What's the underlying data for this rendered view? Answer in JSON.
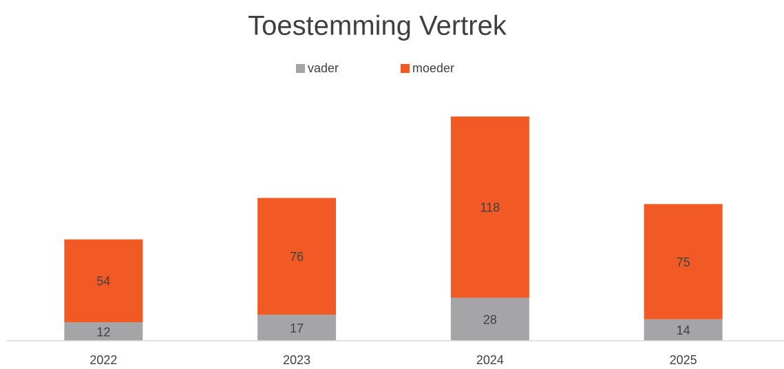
{
  "chart_data": {
    "type": "stacked_bar",
    "title": "Toestemming Vertrek",
    "categories": [
      "2022",
      "2023",
      "2024",
      "2025"
    ],
    "series": [
      {
        "name": "vader",
        "color": "#a5a5a8",
        "values": [
          12,
          17,
          28,
          14
        ]
      },
      {
        "name": "moeder",
        "color": "#f15a24",
        "values": [
          54,
          76,
          118,
          75
        ]
      }
    ],
    "ylim": [
      0,
      160
    ],
    "legend": "top"
  }
}
